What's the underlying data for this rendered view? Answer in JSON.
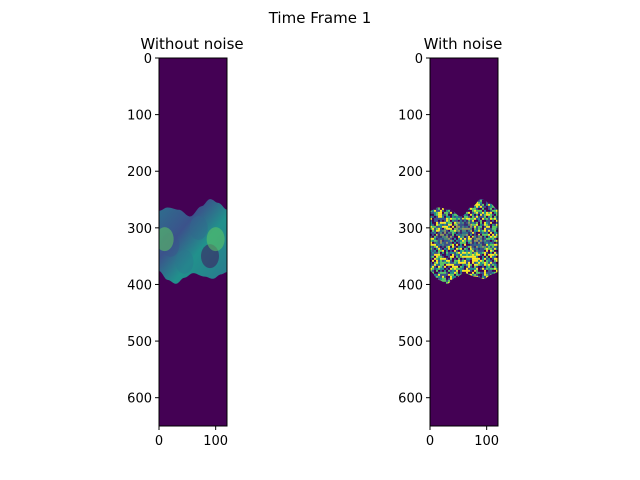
{
  "figure": {
    "title": "Time Frame 1"
  },
  "colors": {
    "background": "#440154",
    "spine": "#000000",
    "viridis": [
      "#440154",
      "#3b528b",
      "#21918c",
      "#5ec962",
      "#fde725"
    ]
  },
  "chart_data": [
    {
      "type": "heatmap",
      "title": "Without noise",
      "x_range": [
        0,
        120
      ],
      "y_range": [
        0,
        650
      ],
      "y_inverted": true,
      "xticks": [
        0,
        100
      ],
      "yticks": [
        0,
        100,
        200,
        300,
        400,
        500,
        600
      ],
      "grid": false,
      "legend": "none",
      "colormap": "viridis",
      "noise": false,
      "band": {
        "top_edge": [
          [
            0,
            270
          ],
          [
            15,
            264
          ],
          [
            35,
            268
          ],
          [
            55,
            280
          ],
          [
            75,
            262
          ],
          [
            90,
            249
          ],
          [
            105,
            256
          ],
          [
            120,
            268
          ]
        ],
        "bottom_edge": [
          [
            0,
            376
          ],
          [
            15,
            392
          ],
          [
            30,
            399
          ],
          [
            45,
            388
          ],
          [
            60,
            380
          ],
          [
            80,
            386
          ],
          [
            95,
            390
          ],
          [
            110,
            382
          ],
          [
            120,
            378
          ]
        ],
        "mean_value": 0.42
      }
    },
    {
      "type": "heatmap",
      "title": "With noise",
      "x_range": [
        0,
        120
      ],
      "y_range": [
        0,
        650
      ],
      "y_inverted": true,
      "xticks": [
        0,
        100
      ],
      "yticks": [
        0,
        100,
        200,
        300,
        400,
        500,
        600
      ],
      "grid": false,
      "legend": "none",
      "colormap": "viridis",
      "noise": true,
      "band": {
        "top_edge": [
          [
            0,
            270
          ],
          [
            15,
            264
          ],
          [
            35,
            268
          ],
          [
            55,
            280
          ],
          [
            75,
            262
          ],
          [
            90,
            249
          ],
          [
            105,
            256
          ],
          [
            120,
            268
          ]
        ],
        "bottom_edge": [
          [
            0,
            376
          ],
          [
            15,
            392
          ],
          [
            30,
            399
          ],
          [
            45,
            388
          ],
          [
            60,
            380
          ],
          [
            80,
            386
          ],
          [
            95,
            390
          ],
          [
            110,
            382
          ],
          [
            120,
            378
          ]
        ],
        "mean_value": 0.55
      }
    }
  ]
}
